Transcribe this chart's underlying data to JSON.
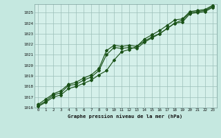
{
  "title": "Graphe pression niveau de la mer (hPa)",
  "background_color": "#c5e8e0",
  "plot_bg_color": "#d5f0ea",
  "grid_color": "#9bbfb8",
  "line_color": "#1a5218",
  "xlim": [
    -0.5,
    23.5
  ],
  "ylim": [
    1016,
    1025.8
  ],
  "xticks": [
    0,
    1,
    2,
    3,
    4,
    5,
    6,
    7,
    8,
    9,
    10,
    11,
    12,
    13,
    14,
    15,
    16,
    17,
    18,
    19,
    20,
    21,
    22,
    23
  ],
  "yticks": [
    1016,
    1017,
    1018,
    1019,
    1020,
    1021,
    1022,
    1023,
    1024,
    1025
  ],
  "series_upper": [
    1016.3,
    1016.8,
    1017.3,
    1017.6,
    1018.2,
    1018.4,
    1018.8,
    1019.1,
    1019.7,
    1021.4,
    1021.9,
    1021.8,
    1021.9,
    1021.8,
    1022.5,
    1022.9,
    1023.3,
    1023.8,
    1024.3,
    1024.4,
    1025.1,
    1025.2,
    1025.3,
    1025.7
  ],
  "series_mid": [
    1016.2,
    1016.6,
    1017.2,
    1017.4,
    1018.1,
    1018.2,
    1018.6,
    1018.9,
    1019.5,
    1021.0,
    1021.7,
    1021.6,
    1021.7,
    1021.6,
    1022.2,
    1022.6,
    1023.0,
    1023.5,
    1024.0,
    1024.1,
    1024.9,
    1025.0,
    1025.1,
    1025.5
  ],
  "series_lower": [
    1016.1,
    1016.5,
    1017.0,
    1017.2,
    1017.8,
    1018.0,
    1018.3,
    1018.6,
    1019.1,
    1019.5,
    1020.5,
    1021.3,
    1021.5,
    1021.8,
    1022.3,
    1022.7,
    1023.0,
    1023.5,
    1024.0,
    1024.3,
    1025.0,
    1025.1,
    1025.2,
    1025.6
  ]
}
